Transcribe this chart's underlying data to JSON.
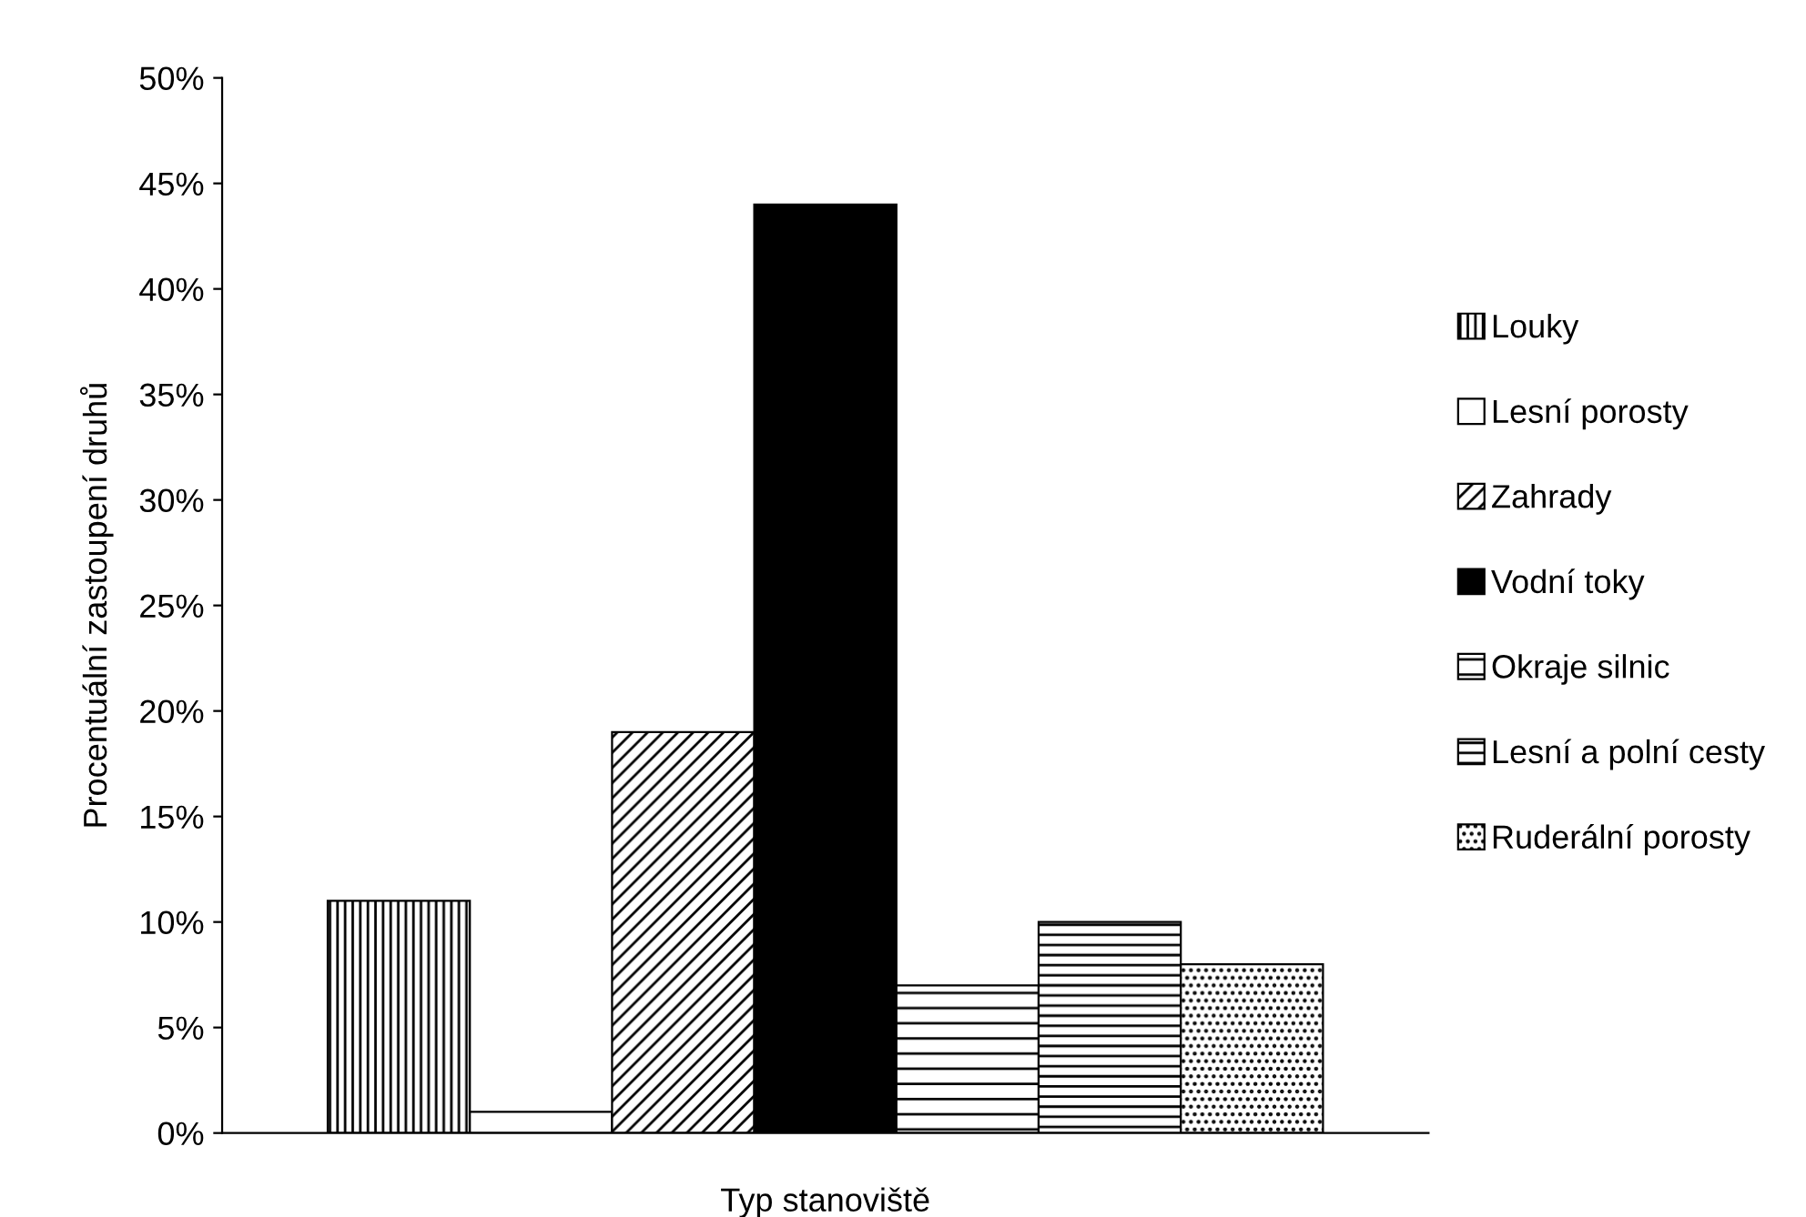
{
  "chart_data": {
    "type": "bar",
    "xlabel": "Typ stanoviště",
    "ylabel": "Procentuální zastoupení druhů",
    "categories": [
      null
    ],
    "series": [
      {
        "name": "Louky",
        "color": "#000000",
        "values": [
          11
        ]
      },
      {
        "name": "Lesní porosty",
        "color": "#ffffff",
        "values": [
          1
        ]
      },
      {
        "name": "Zahrady",
        "color": "#000000",
        "values": [
          19
        ]
      },
      {
        "name": "Vodní toky",
        "color": "#000000",
        "values": [
          44
        ]
      },
      {
        "name": "Okraje silnic",
        "color": "#000000",
        "values": [
          7
        ]
      },
      {
        "name": "Lesní a polní cesty",
        "color": "#000000",
        "values": [
          10
        ]
      },
      {
        "name": "Ruderální porosty",
        "color": "#000000",
        "values": [
          8
        ]
      }
    ],
    "ylim": [
      0,
      50
    ],
    "yticks": [
      {
        "value": 0,
        "label": "0%"
      },
      {
        "value": 5,
        "label": "5%"
      },
      {
        "value": 10,
        "label": "10%"
      },
      {
        "value": 15,
        "label": "15%"
      },
      {
        "value": 20,
        "label": "20%"
      },
      {
        "value": 25,
        "label": "25%"
      },
      {
        "value": 30,
        "label": "30%"
      },
      {
        "value": 35,
        "label": "35%"
      },
      {
        "value": 40,
        "label": "40%"
      },
      {
        "value": 45,
        "label": "45%"
      },
      {
        "value": 50,
        "label": "50%"
      }
    ],
    "grid": false,
    "legend": "right"
  }
}
